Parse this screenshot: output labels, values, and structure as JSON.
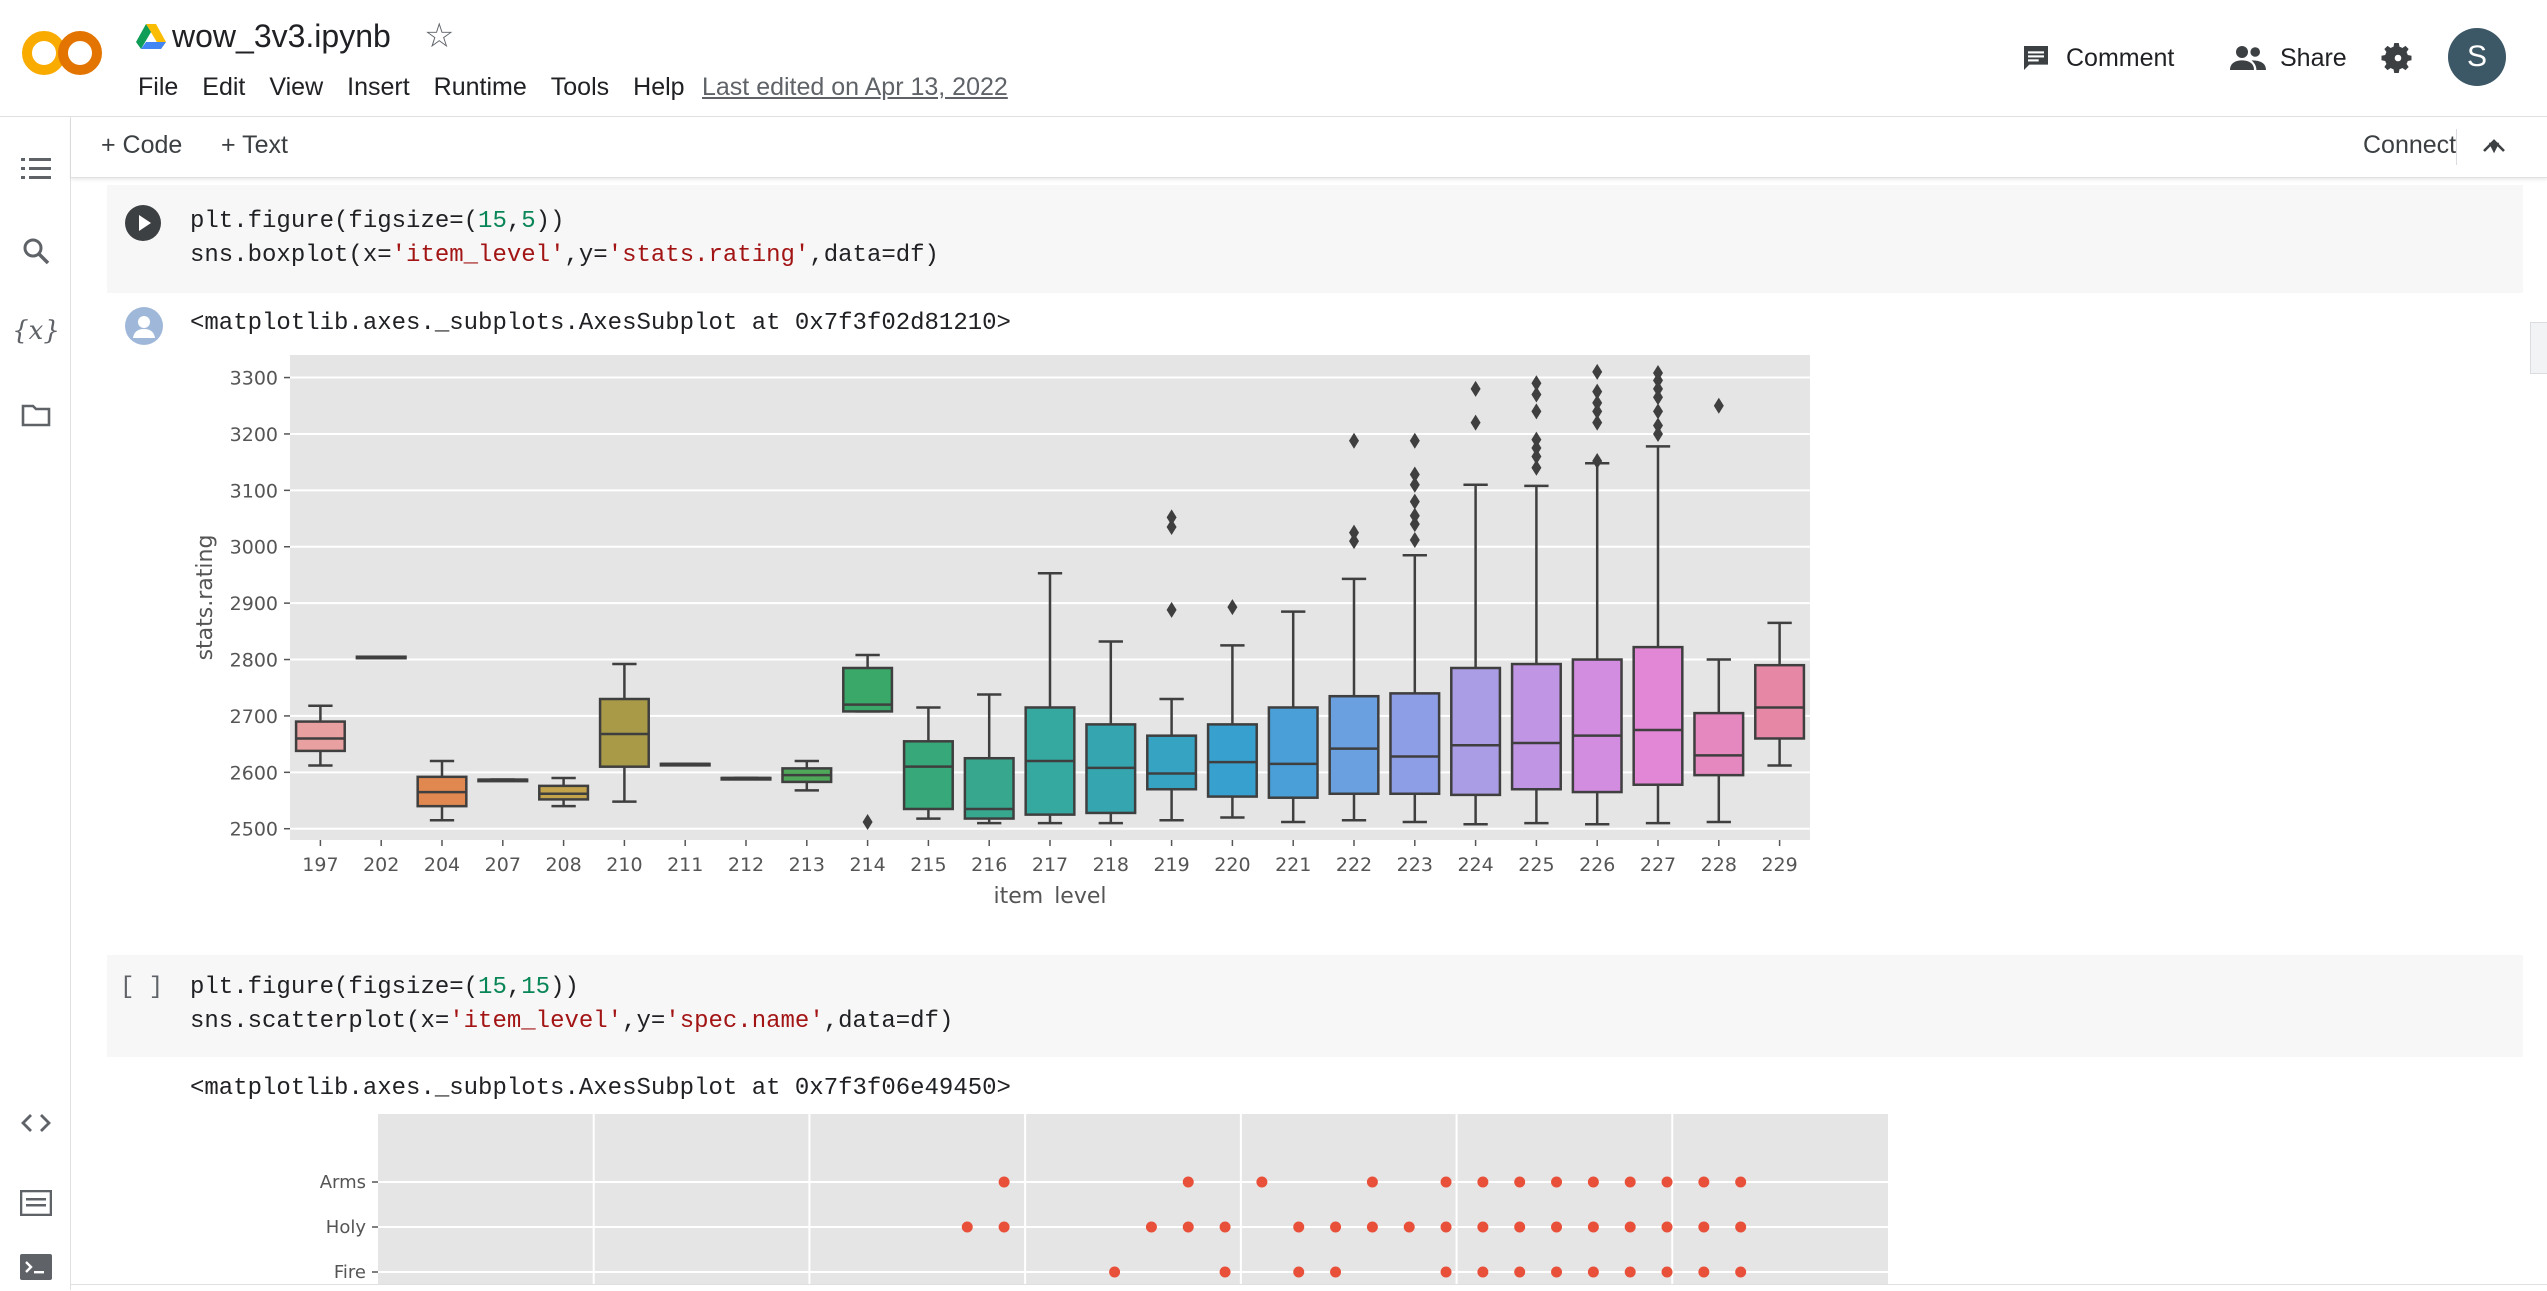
{
  "header": {
    "logo_text": "CO",
    "doc_title": "wow_3v3.ipynb",
    "menu": [
      "File",
      "Edit",
      "View",
      "Insert",
      "Runtime",
      "Tools",
      "Help"
    ],
    "last_edited": "Last edited on Apr 13, 2022",
    "comment_label": "Comment",
    "share_label": "Share",
    "avatar_letter": "S"
  },
  "toolbar": {
    "code_label": "+ Code",
    "text_label": "+ Text",
    "connect_label": "Connect"
  },
  "cells": {
    "cell1": {
      "line1": [
        "plt.figure(figsize=(",
        "15",
        ",",
        "5",
        "))"
      ],
      "line2": [
        "sns.boxplot(x=",
        "'item_level'",
        ",y=",
        "'stats.rating'",
        ",data=df)"
      ],
      "output": "<matplotlib.axes._subplots.AxesSubplot at 0x7f3f02d81210>"
    },
    "cell2": {
      "bracket": "[ ]",
      "line1": [
        "plt.figure(figsize=(",
        "15",
        ",",
        "15",
        "))"
      ],
      "line2": [
        "sns.scatterplot(x=",
        "'item_level'",
        ",y=",
        "'spec.name'",
        ",data=df)"
      ],
      "output": "<matplotlib.axes._subplots.AxesSubplot at 0x7f3f06e49450>"
    }
  },
  "chart_data": [
    {
      "type": "box",
      "xlabel": "item_level",
      "ylabel": "stats.rating",
      "ylim": [
        2480,
        3340
      ],
      "yticks": [
        2500,
        2600,
        2700,
        2800,
        2900,
        3000,
        3100,
        3200,
        3300
      ],
      "grid": true,
      "categories": [
        "197",
        "202",
        "204",
        "207",
        "208",
        "210",
        "211",
        "212",
        "213",
        "214",
        "215",
        "216",
        "217",
        "218",
        "219",
        "220",
        "221",
        "222",
        "223",
        "224",
        "225",
        "226",
        "227",
        "228",
        "229"
      ],
      "colors": [
        "#e8a0a0",
        "#d9a07a",
        "#e0884f",
        "#c99c5a",
        "#c2a24a",
        "#a99a48",
        "#8aa348",
        "#6fa84a",
        "#4fa75a",
        "#3aa868",
        "#37a87a",
        "#37a88e",
        "#35a8a0",
        "#35a6b0",
        "#36a3c2",
        "#38a0cf",
        "#4a9fd8",
        "#6aa0e0",
        "#8d9ee6",
        "#ab9ce6",
        "#c095e4",
        "#d28de0",
        "#e287d6",
        "#e688c0",
        "#e687a6"
      ],
      "boxes": [
        {
          "whislo": 2612,
          "q1": 2638,
          "med": 2660,
          "q3": 2690,
          "whishi": 2718,
          "fliers": []
        },
        {
          "whislo": 2805,
          "q1": 2805,
          "med": 2805,
          "q3": 2805,
          "whishi": 2805,
          "fliers": []
        },
        {
          "whislo": 2515,
          "q1": 2540,
          "med": 2565,
          "q3": 2592,
          "whishi": 2620,
          "fliers": []
        },
        {
          "whislo": 2587,
          "q1": 2587,
          "med": 2587,
          "q3": 2587,
          "whishi": 2587,
          "fliers": []
        },
        {
          "whislo": 2540,
          "q1": 2552,
          "med": 2562,
          "q3": 2576,
          "whishi": 2590,
          "fliers": []
        },
        {
          "whislo": 2548,
          "q1": 2610,
          "med": 2668,
          "q3": 2730,
          "whishi": 2792,
          "fliers": []
        },
        {
          "whislo": 2615,
          "q1": 2615,
          "med": 2615,
          "q3": 2615,
          "whishi": 2615,
          "fliers": []
        },
        {
          "whislo": 2590,
          "q1": 2590,
          "med": 2590,
          "q3": 2590,
          "whishi": 2590,
          "fliers": []
        },
        {
          "whislo": 2568,
          "q1": 2583,
          "med": 2595,
          "q3": 2607,
          "whishi": 2620,
          "fliers": []
        },
        {
          "whislo": 2708,
          "q1": 2708,
          "med": 2720,
          "q3": 2785,
          "whishi": 2808,
          "fliers": [
            2512
          ]
        },
        {
          "whislo": 2518,
          "q1": 2535,
          "med": 2610,
          "q3": 2655,
          "whishi": 2715,
          "fliers": []
        },
        {
          "whislo": 2510,
          "q1": 2518,
          "med": 2535,
          "q3": 2625,
          "whishi": 2738,
          "fliers": []
        },
        {
          "whislo": 2510,
          "q1": 2525,
          "med": 2620,
          "q3": 2715,
          "whishi": 2953,
          "fliers": []
        },
        {
          "whislo": 2510,
          "q1": 2528,
          "med": 2608,
          "q3": 2685,
          "whishi": 2832,
          "fliers": []
        },
        {
          "whislo": 2515,
          "q1": 2570,
          "med": 2598,
          "q3": 2665,
          "whishi": 2730,
          "fliers": [
            2888,
            3035,
            3052
          ]
        },
        {
          "whislo": 2520,
          "q1": 2557,
          "med": 2618,
          "q3": 2685,
          "whishi": 2825,
          "fliers": [
            2893
          ]
        },
        {
          "whislo": 2512,
          "q1": 2555,
          "med": 2615,
          "q3": 2715,
          "whishi": 2885,
          "fliers": []
        },
        {
          "whislo": 2515,
          "q1": 2562,
          "med": 2642,
          "q3": 2735,
          "whishi": 2943,
          "fliers": [
            3010,
            3025,
            3188
          ]
        },
        {
          "whislo": 2512,
          "q1": 2562,
          "med": 2628,
          "q3": 2740,
          "whishi": 2985,
          "fliers": [
            3012,
            3040,
            3055,
            3080,
            3110,
            3128,
            3188
          ]
        },
        {
          "whislo": 2508,
          "q1": 2560,
          "med": 2648,
          "q3": 2785,
          "whishi": 3110,
          "fliers": [
            3220,
            3280
          ]
        },
        {
          "whislo": 2510,
          "q1": 2570,
          "med": 2652,
          "q3": 2792,
          "whishi": 3108,
          "fliers": [
            3140,
            3160,
            3175,
            3190,
            3240,
            3270,
            3290
          ]
        },
        {
          "whislo": 2508,
          "q1": 2565,
          "med": 2665,
          "q3": 2800,
          "whishi": 3148,
          "fliers": [
            3152,
            3220,
            3240,
            3255,
            3275,
            3310
          ]
        },
        {
          "whislo": 2510,
          "q1": 2578,
          "med": 2675,
          "q3": 2822,
          "whishi": 3178,
          "fliers": [
            3200,
            3215,
            3240,
            3265,
            3280,
            3295,
            3308
          ]
        },
        {
          "whislo": 2512,
          "q1": 2595,
          "med": 2630,
          "q3": 2705,
          "whishi": 2800,
          "fliers": [
            3250
          ]
        },
        {
          "whislo": 2612,
          "q1": 2660,
          "med": 2715,
          "q3": 2790,
          "whishi": 2865,
          "fliers": []
        }
      ]
    },
    {
      "type": "scatter",
      "categories_y": [
        "Arms",
        "Holy",
        "Fire"
      ],
      "x_ticks_count": 7,
      "color": "#e8503a",
      "points": {
        "Arms": [
          214,
          219,
          221,
          224,
          226,
          227,
          228,
          229,
          230,
          231,
          232,
          233,
          234
        ],
        "Holy": [
          213,
          214,
          218,
          219,
          220,
          222,
          223,
          224,
          225,
          226,
          227,
          228,
          229,
          230,
          231,
          232,
          233,
          234
        ],
        "Fire": [
          217,
          220,
          222,
          223,
          226,
          227,
          228,
          229,
          230,
          231,
          232,
          233,
          234
        ]
      },
      "xlim": [
        197,
        238
      ]
    }
  ]
}
